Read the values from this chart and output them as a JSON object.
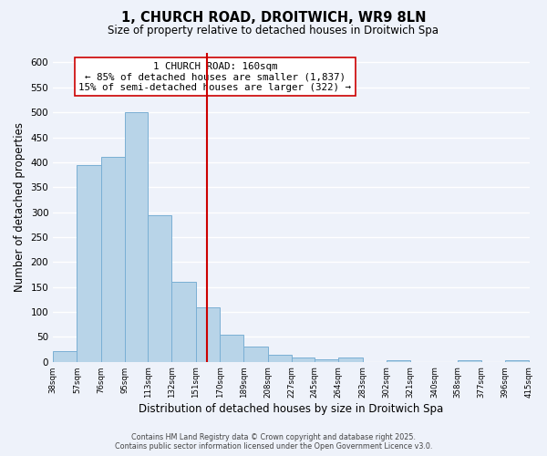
{
  "title": "1, CHURCH ROAD, DROITWICH, WR9 8LN",
  "subtitle": "Size of property relative to detached houses in Droitwich Spa",
  "xlabel": "Distribution of detached houses by size in Droitwich Spa",
  "ylabel": "Number of detached properties",
  "bar_edges": [
    38,
    57,
    76,
    95,
    113,
    132,
    151,
    170,
    189,
    208,
    227,
    245,
    264,
    283,
    302,
    321,
    340,
    358,
    377,
    396,
    415
  ],
  "bar_heights": [
    22,
    395,
    410,
    500,
    293,
    160,
    110,
    55,
    30,
    15,
    8,
    5,
    8,
    0,
    3,
    0,
    0,
    3,
    0,
    3
  ],
  "bar_color": "#b8d4e8",
  "bar_edge_color": "#7aafd4",
  "vline_x": 160,
  "vline_color": "#cc0000",
  "annotation_title": "1 CHURCH ROAD: 160sqm",
  "annotation_line1": "← 85% of detached houses are smaller (1,837)",
  "annotation_line2": "15% of semi-detached houses are larger (322) →",
  "annotation_box_color": "#ffffff",
  "annotation_box_edge": "#cc0000",
  "tick_labels": [
    "38sqm",
    "57sqm",
    "76sqm",
    "95sqm",
    "113sqm",
    "132sqm",
    "151sqm",
    "170sqm",
    "189sqm",
    "208sqm",
    "227sqm",
    "245sqm",
    "264sqm",
    "283sqm",
    "302sqm",
    "321sqm",
    "340sqm",
    "358sqm",
    "377sqm",
    "396sqm",
    "415sqm"
  ],
  "ylim": [
    0,
    620
  ],
  "yticks": [
    0,
    50,
    100,
    150,
    200,
    250,
    300,
    350,
    400,
    450,
    500,
    550,
    600
  ],
  "bg_color": "#eef2fa",
  "grid_color": "#ffffff",
  "footer_line1": "Contains HM Land Registry data © Crown copyright and database right 2025.",
  "footer_line2": "Contains public sector information licensed under the Open Government Licence v3.0."
}
